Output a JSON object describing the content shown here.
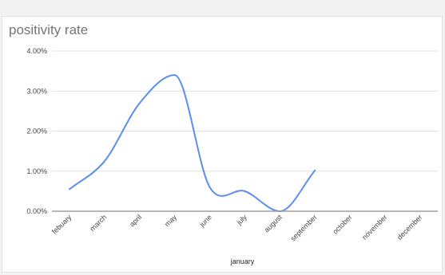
{
  "chart_data": {
    "type": "line",
    "title": "positivity rate",
    "xlabel": "january",
    "ylabel": "",
    "categories": [
      "febuary",
      "march",
      "april",
      "may",
      "june",
      "july",
      "august",
      "september",
      "october",
      "november",
      "december"
    ],
    "series": [
      {
        "values": [
          0.55,
          1.25,
          2.7,
          3.4,
          0.6,
          0.5,
          0.0,
          1.02,
          null,
          null,
          null
        ]
      }
    ],
    "ylim": [
      0,
      4
    ],
    "yticks": [
      0,
      1,
      2,
      3,
      4
    ],
    "ytick_labels": [
      "0.00%",
      "1.00%",
      "2.00%",
      "3.00%",
      "4.00%"
    ],
    "grid": true,
    "legend": "none",
    "colors": {
      "line": "#5b8def",
      "grid": "#e0e0e0",
      "baseline": "#9e9e9e"
    }
  }
}
